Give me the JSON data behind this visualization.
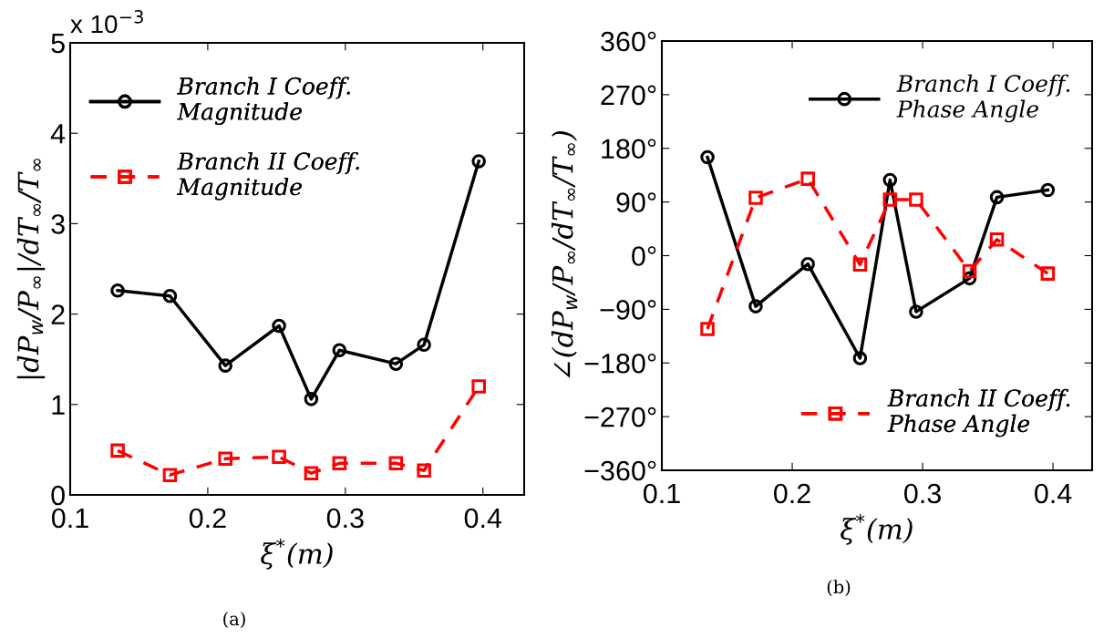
{
  "chart_data": [
    {
      "type": "line",
      "x": [
        0.1345,
        0.1725,
        0.2128,
        0.2518,
        0.2752,
        0.2957,
        0.3368,
        0.3572,
        0.397
      ],
      "xlabel": "ξ$^{*}$(m)",
      "ylabel": "|dP$_{w}$/P$_{∞}$|/dT$_{∞}$/T$_{∞}$",
      "xlim": [
        0.1,
        0.43
      ],
      "xticks": [
        0.1,
        0.2,
        0.3,
        0.4
      ],
      "ylim": [
        0,
        5
      ],
      "yticks": [
        0,
        1,
        2,
        3,
        4,
        5
      ],
      "grid": false,
      "legend": "top left",
      "annotations": [
        "x 10$^{−3}$",
        "(a)"
      ],
      "series": [
        {
          "name": "Branch I Coeff.\nMagnitude",
          "color": "#000000",
          "marker": "circle",
          "line_style": "solid",
          "values": [
            2.26,
            2.2,
            1.43,
            1.87,
            1.06,
            1.6,
            1.45,
            1.66,
            3.69
          ]
        },
        {
          "name": "Branch II Coeff.\nMagnitude",
          "color": "#ff0000",
          "marker": "square",
          "line_style": "dashed",
          "values": [
            0.49,
            0.22,
            0.4,
            0.42,
            0.24,
            0.35,
            0.35,
            0.27,
            1.2
          ]
        }
      ]
    },
    {
      "type": "line",
      "x": [
        0.135,
        0.172,
        0.212,
        0.252,
        0.275,
        0.295,
        0.336,
        0.357,
        0.396
      ],
      "xlabel": "ξ$^{*}$(m)",
      "ylabel": "∠(dP$_{w}$/P$_{∞}$/dT$_{∞}$/T$_{∞}$)",
      "xlim": [
        0.1,
        0.43
      ],
      "xticks": [
        0.1,
        0.2,
        0.3,
        0.4
      ],
      "ylim": [
        -360,
        360
      ],
      "yticks": [
        {
          "value": -360,
          "label": "−360°"
        },
        {
          "value": -270,
          "label": "−270°"
        },
        {
          "value": -180,
          "label": "−180°"
        },
        {
          "value": -90,
          "label": "−90°"
        },
        {
          "value": 0,
          "label": "0°"
        },
        {
          "value": 90,
          "label": "90°"
        },
        {
          "value": 180,
          "label": "180°"
        },
        {
          "value": 270,
          "label": "270°"
        },
        {
          "value": 360,
          "label": "360°"
        }
      ],
      "grid": false,
      "legend": "right",
      "annotations": [
        "(b)"
      ],
      "series": [
        {
          "name": "Branch I Coeff.\nPhase Angle",
          "color": "#000000",
          "marker": "circle",
          "line_style": "solid",
          "values": [
            165,
            -85,
            -14,
            -172,
            127,
            -94,
            -38,
            98,
            110
          ]
        },
        {
          "name": "Branch II Coeff.\nPhase Angle",
          "color": "#ff0000",
          "marker": "square",
          "line_style": "dashed",
          "values": [
            -123,
            97,
            129,
            -15,
            94,
            94,
            -26,
            27,
            -30
          ]
        }
      ]
    }
  ]
}
